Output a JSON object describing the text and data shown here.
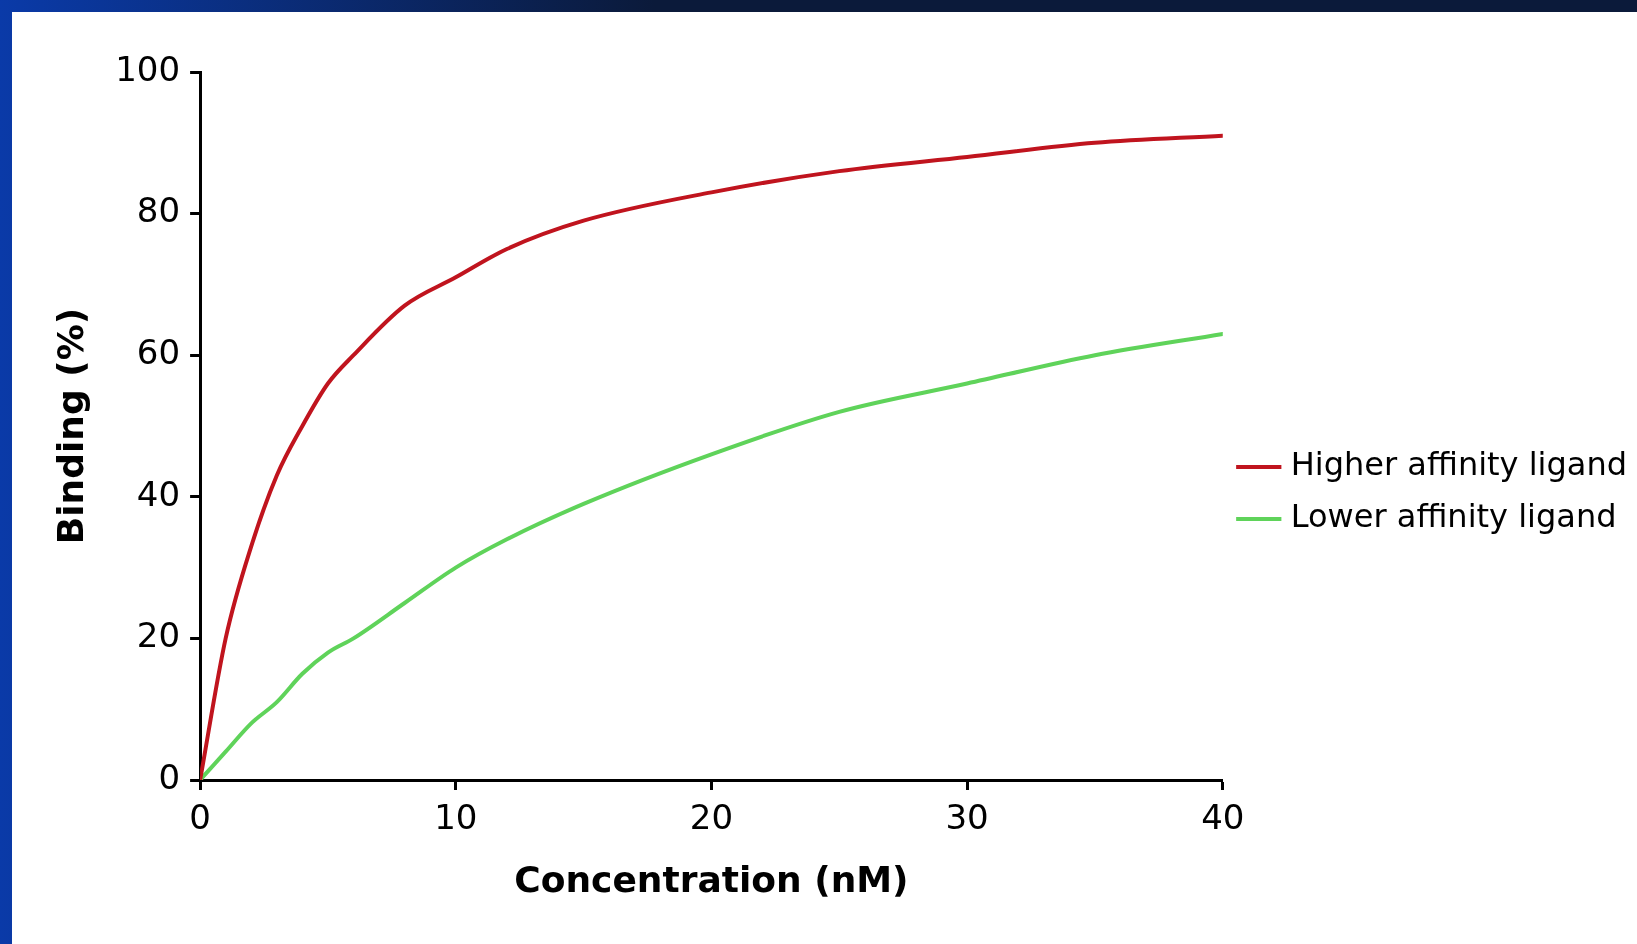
{
  "chart_data": {
    "type": "line",
    "xlabel": "Concentration (nM)",
    "ylabel": "Binding (%)",
    "x": [
      0,
      1,
      2,
      3,
      4,
      5,
      6,
      8,
      10,
      12,
      15,
      20,
      25,
      30,
      35,
      40
    ],
    "series": [
      {
        "name": "Higher affinity ligand",
        "color": "#c0141e",
        "values": [
          0,
          20,
          33,
          43,
          50,
          56,
          60,
          67,
          71,
          75,
          79,
          83,
          86,
          88,
          90,
          91
        ]
      },
      {
        "name": "Lower affinity ligand",
        "color": "#5fd35a",
        "values": [
          0,
          4,
          8,
          11,
          15,
          18,
          20,
          25,
          30,
          34,
          39,
          46,
          52,
          56,
          60,
          63
        ]
      }
    ],
    "xlim": [
      0,
      40
    ],
    "xticks": [
      0,
      10,
      20,
      30,
      40
    ],
    "ylim": [
      0,
      100
    ],
    "yticks": [
      0,
      20,
      40,
      60,
      80,
      100
    ],
    "grid": false,
    "legend": "right",
    "marker": "none",
    "line_style": "solid"
  }
}
